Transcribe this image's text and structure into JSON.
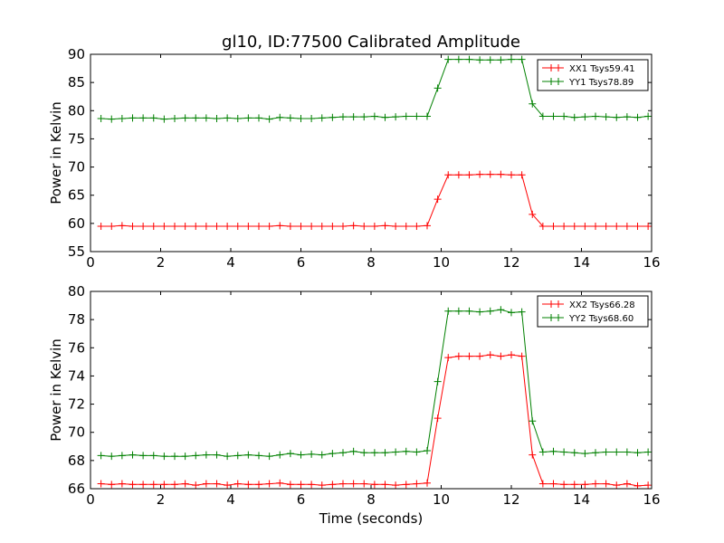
{
  "chart_data": [
    {
      "type": "line",
      "title": "gl10, ID:77500 Calibrated Amplitude",
      "ylabel": "Power in Kelvin",
      "xlabel": "",
      "xlim": [
        0,
        16
      ],
      "ylim": [
        55,
        90
      ],
      "xticks": [
        0,
        2,
        4,
        6,
        8,
        10,
        12,
        14,
        16
      ],
      "yticks": [
        55,
        60,
        65,
        70,
        75,
        80,
        85,
        90
      ],
      "legend_position": "top-right",
      "x": [
        0.3,
        0.6,
        0.9,
        1.2,
        1.5,
        1.8,
        2.1,
        2.4,
        2.7,
        3.0,
        3.3,
        3.6,
        3.9,
        4.2,
        4.5,
        4.8,
        5.1,
        5.4,
        5.7,
        6.0,
        6.3,
        6.6,
        6.9,
        7.2,
        7.5,
        7.8,
        8.1,
        8.4,
        8.7,
        9.0,
        9.3,
        9.6,
        9.9,
        10.2,
        10.5,
        10.8,
        11.1,
        11.4,
        11.7,
        12.0,
        12.3,
        12.6,
        12.9,
        13.2,
        13.5,
        13.8,
        14.1,
        14.4,
        14.7,
        15.0,
        15.3,
        15.6,
        15.9
      ],
      "series": [
        {
          "name": "XX1 Tsys59.41",
          "color": "#ff0000",
          "values": [
            59.5,
            59.5,
            59.6,
            59.5,
            59.5,
            59.5,
            59.5,
            59.5,
            59.5,
            59.5,
            59.5,
            59.5,
            59.5,
            59.5,
            59.5,
            59.5,
            59.5,
            59.6,
            59.5,
            59.5,
            59.5,
            59.5,
            59.5,
            59.5,
            59.6,
            59.5,
            59.5,
            59.6,
            59.5,
            59.5,
            59.5,
            59.6,
            64.3,
            68.6,
            68.6,
            68.6,
            68.7,
            68.7,
            68.7,
            68.6,
            68.6,
            61.6,
            59.5,
            59.5,
            59.5,
            59.5,
            59.5,
            59.5,
            59.5,
            59.5,
            59.5,
            59.5,
            59.5
          ]
        },
        {
          "name": "YY1 Tsys78.89",
          "color": "#008000",
          "values": [
            78.6,
            78.5,
            78.6,
            78.7,
            78.7,
            78.7,
            78.5,
            78.6,
            78.7,
            78.7,
            78.7,
            78.6,
            78.7,
            78.6,
            78.7,
            78.7,
            78.5,
            78.8,
            78.7,
            78.6,
            78.6,
            78.7,
            78.8,
            78.9,
            78.9,
            78.9,
            79.0,
            78.8,
            78.9,
            79.0,
            79.0,
            79.0,
            84.0,
            89.1,
            89.1,
            89.1,
            89.0,
            89.0,
            89.0,
            89.1,
            89.1,
            81.2,
            79.0,
            79.0,
            79.0,
            78.8,
            78.9,
            79.0,
            78.9,
            78.8,
            78.9,
            78.8,
            79.0
          ]
        }
      ]
    },
    {
      "type": "line",
      "title": "",
      "ylabel": "Power in Kelvin",
      "xlabel": "Time (seconds)",
      "xlim": [
        0,
        16
      ],
      "ylim": [
        66,
        80
      ],
      "xticks": [
        0,
        2,
        4,
        6,
        8,
        10,
        12,
        14,
        16
      ],
      "yticks": [
        66,
        68,
        70,
        72,
        74,
        76,
        78,
        80
      ],
      "legend_position": "top-right",
      "x": [
        0.3,
        0.6,
        0.9,
        1.2,
        1.5,
        1.8,
        2.1,
        2.4,
        2.7,
        3.0,
        3.3,
        3.6,
        3.9,
        4.2,
        4.5,
        4.8,
        5.1,
        5.4,
        5.7,
        6.0,
        6.3,
        6.6,
        6.9,
        7.2,
        7.5,
        7.8,
        8.1,
        8.4,
        8.7,
        9.0,
        9.3,
        9.6,
        9.9,
        10.2,
        10.5,
        10.8,
        11.1,
        11.4,
        11.7,
        12.0,
        12.3,
        12.6,
        12.9,
        13.2,
        13.5,
        13.8,
        14.1,
        14.4,
        14.7,
        15.0,
        15.3,
        15.6,
        15.9
      ],
      "series": [
        {
          "name": "XX2 Tsys66.28",
          "color": "#ff0000",
          "values": [
            66.35,
            66.3,
            66.35,
            66.3,
            66.3,
            66.3,
            66.3,
            66.3,
            66.35,
            66.25,
            66.35,
            66.35,
            66.25,
            66.35,
            66.3,
            66.3,
            66.35,
            66.4,
            66.3,
            66.3,
            66.3,
            66.25,
            66.3,
            66.35,
            66.35,
            66.35,
            66.3,
            66.3,
            66.25,
            66.3,
            66.35,
            66.4,
            71.0,
            75.3,
            75.4,
            75.4,
            75.4,
            75.5,
            75.4,
            75.5,
            75.4,
            68.4,
            66.35,
            66.35,
            66.3,
            66.3,
            66.3,
            66.35,
            66.35,
            66.25,
            66.35,
            66.2,
            66.25
          ]
        },
        {
          "name": "YY2 Tsys68.60",
          "color": "#008000",
          "values": [
            68.35,
            68.3,
            68.35,
            68.4,
            68.35,
            68.35,
            68.3,
            68.3,
            68.3,
            68.35,
            68.4,
            68.4,
            68.3,
            68.35,
            68.4,
            68.35,
            68.3,
            68.4,
            68.5,
            68.4,
            68.45,
            68.4,
            68.5,
            68.55,
            68.65,
            68.55,
            68.55,
            68.55,
            68.6,
            68.65,
            68.6,
            68.7,
            73.6,
            78.6,
            78.6,
            78.6,
            78.55,
            78.6,
            78.7,
            78.5,
            78.55,
            70.8,
            68.6,
            68.65,
            68.6,
            68.55,
            68.5,
            68.55,
            68.6,
            68.6,
            68.6,
            68.55,
            68.6
          ]
        }
      ]
    }
  ]
}
